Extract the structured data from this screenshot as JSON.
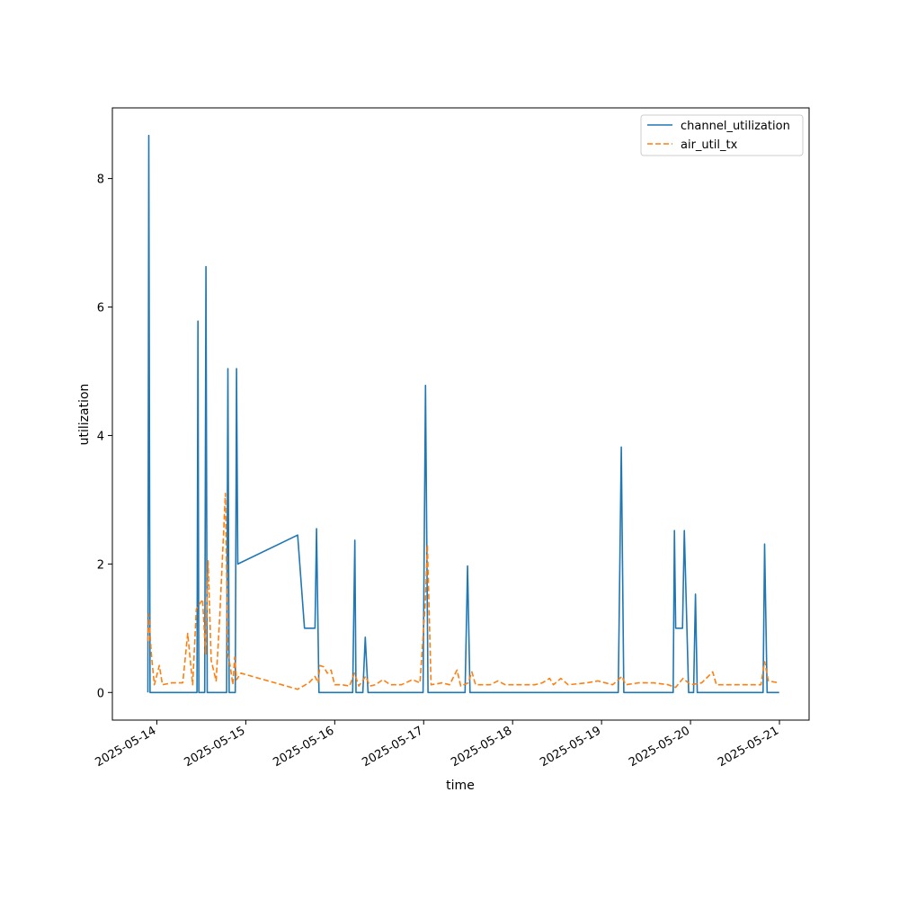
{
  "chart_data": {
    "type": "line",
    "xlabel": "time",
    "ylabel": "utilization",
    "xlim": [
      "2025-05-13 12:00",
      "2025-05-21 08:00"
    ],
    "ylim": [
      -0.43,
      9.1
    ],
    "x_ticks": [
      "2025-05-14",
      "2025-05-15",
      "2025-05-16",
      "2025-05-17",
      "2025-05-18",
      "2025-05-19",
      "2025-05-20",
      "2025-05-21"
    ],
    "y_ticks": [
      "0",
      "2",
      "4",
      "6",
      "8"
    ],
    "legend_position": "top-right",
    "grid": false,
    "series": [
      {
        "name": "channel_utilization",
        "color": "#1f77b4",
        "style": "solid",
        "points": [
          [
            "2025-05-13 21:35",
            0
          ],
          [
            "2025-05-13 21:50",
            8.67
          ],
          [
            "2025-05-13 22:10",
            0
          ],
          [
            "2025-05-14 10:50",
            0
          ],
          [
            "2025-05-14 11:05",
            5.78
          ],
          [
            "2025-05-14 11:20",
            0
          ],
          [
            "2025-05-14 12:55",
            0
          ],
          [
            "2025-05-14 13:15",
            6.63
          ],
          [
            "2025-05-14 13:35",
            0
          ],
          [
            "2025-05-14 18:50",
            0
          ],
          [
            "2025-05-14 19:10",
            5.04
          ],
          [
            "2025-05-14 19:30",
            0
          ],
          [
            "2025-05-14 21:10",
            0
          ],
          [
            "2025-05-14 21:30",
            5.04
          ],
          [
            "2025-05-14 21:50",
            2.0
          ],
          [
            "2025-05-15 14:00",
            2.45
          ],
          [
            "2025-05-15 15:50",
            1.0
          ],
          [
            "2025-05-15 18:40",
            1.0
          ],
          [
            "2025-05-15 19:05",
            2.55
          ],
          [
            "2025-05-15 19:45",
            0
          ],
          [
            "2025-05-16 04:50",
            0
          ],
          [
            "2025-05-16 05:25",
            2.37
          ],
          [
            "2025-05-16 05:45",
            0
          ],
          [
            "2025-05-16 07:35",
            0
          ],
          [
            "2025-05-16 08:15",
            0.86
          ],
          [
            "2025-05-16 09:00",
            0
          ],
          [
            "2025-05-16 23:50",
            0
          ],
          [
            "2025-05-17 00:30",
            4.78
          ],
          [
            "2025-05-17 01:10",
            0
          ],
          [
            "2025-05-17 11:10",
            0
          ],
          [
            "2025-05-17 11:50",
            1.97
          ],
          [
            "2025-05-17 12:30",
            0
          ],
          [
            "2025-05-19 04:30",
            0
          ],
          [
            "2025-05-19 05:20",
            3.82
          ],
          [
            "2025-05-19 06:00",
            0
          ],
          [
            "2025-05-19 19:20",
            0
          ],
          [
            "2025-05-19 19:40",
            2.52
          ],
          [
            "2025-05-19 20:00",
            1.0
          ],
          [
            "2025-05-19 21:50",
            1.0
          ],
          [
            "2025-05-19 22:20",
            2.52
          ],
          [
            "2025-05-19 23:30",
            0
          ],
          [
            "2025-05-20 00:50",
            0
          ],
          [
            "2025-05-20 01:20",
            1.53
          ],
          [
            "2025-05-20 01:50",
            0
          ],
          [
            "2025-05-20 19:35",
            0
          ],
          [
            "2025-05-20 20:00",
            2.31
          ],
          [
            "2025-05-20 20:40",
            0
          ],
          [
            "2025-05-20 23:55",
            0
          ]
        ]
      },
      {
        "name": "air_util_tx",
        "color": "#ff7f0e",
        "style": "dashed",
        "points": [
          [
            "2025-05-13 21:35",
            0.8
          ],
          [
            "2025-05-13 21:50",
            1.22
          ],
          [
            "2025-05-13 22:30",
            0.6
          ],
          [
            "2025-05-13 23:20",
            0.12
          ],
          [
            "2025-05-14 00:40",
            0.42
          ],
          [
            "2025-05-14 01:30",
            0.12
          ],
          [
            "2025-05-14 04:00",
            0.15
          ],
          [
            "2025-05-14 07:00",
            0.15
          ],
          [
            "2025-05-14 08:20",
            0.92
          ],
          [
            "2025-05-14 09:40",
            0.12
          ],
          [
            "2025-05-14 10:40",
            1.3
          ],
          [
            "2025-05-14 12:20",
            1.45
          ],
          [
            "2025-05-14 13:10",
            0.6
          ],
          [
            "2025-05-14 13:50",
            2.05
          ],
          [
            "2025-05-14 14:40",
            0.5
          ],
          [
            "2025-05-14 16:00",
            0.18
          ],
          [
            "2025-05-14 17:00",
            1.2
          ],
          [
            "2025-05-14 18:30",
            3.1
          ],
          [
            "2025-05-14 19:10",
            0.6
          ],
          [
            "2025-05-14 19:50",
            0.4
          ],
          [
            "2025-05-14 20:30",
            0.12
          ],
          [
            "2025-05-14 21:00",
            0.55
          ],
          [
            "2025-05-14 21:30",
            0.2
          ],
          [
            "2025-05-14 22:40",
            0.3
          ],
          [
            "2025-05-15 14:00",
            0.05
          ],
          [
            "2025-05-15 17:00",
            0.15
          ],
          [
            "2025-05-15 18:40",
            0.25
          ],
          [
            "2025-05-15 19:30",
            0.15
          ],
          [
            "2025-05-15 20:00",
            0.42
          ],
          [
            "2025-05-15 21:00",
            0.4
          ],
          [
            "2025-05-15 22:00",
            0.3
          ],
          [
            "2025-05-15 23:00",
            0.35
          ],
          [
            "2025-05-16 00:00",
            0.12
          ],
          [
            "2025-05-16 02:00",
            0.12
          ],
          [
            "2025-05-16 04:00",
            0.1
          ],
          [
            "2025-05-16 05:20",
            0.3
          ],
          [
            "2025-05-16 06:30",
            0.1
          ],
          [
            "2025-05-16 08:20",
            0.25
          ],
          [
            "2025-05-16 09:30",
            0.1
          ],
          [
            "2025-05-16 11:00",
            0.12
          ],
          [
            "2025-05-16 13:00",
            0.2
          ],
          [
            "2025-05-16 15:00",
            0.12
          ],
          [
            "2025-05-16 18:00",
            0.12
          ],
          [
            "2025-05-16 21:00",
            0.2
          ],
          [
            "2025-05-16 23:00",
            0.15
          ],
          [
            "2025-05-17 00:30",
            1.45
          ],
          [
            "2025-05-17 01:00",
            2.3
          ],
          [
            "2025-05-17 02:00",
            0.12
          ],
          [
            "2025-05-17 05:00",
            0.15
          ],
          [
            "2025-05-17 07:00",
            0.12
          ],
          [
            "2025-05-17 09:00",
            0.35
          ],
          [
            "2025-05-17 10:00",
            0.1
          ],
          [
            "2025-05-17 12:00",
            0.15
          ],
          [
            "2025-05-17 13:00",
            0.32
          ],
          [
            "2025-05-17 14:00",
            0.12
          ],
          [
            "2025-05-17 18:00",
            0.12
          ],
          [
            "2025-05-17 20:00",
            0.18
          ],
          [
            "2025-05-17 22:00",
            0.12
          ],
          [
            "2025-05-18 06:00",
            0.12
          ],
          [
            "2025-05-18 08:00",
            0.15
          ],
          [
            "2025-05-18 10:00",
            0.22
          ],
          [
            "2025-05-18 11:00",
            0.12
          ],
          [
            "2025-05-18 13:00",
            0.22
          ],
          [
            "2025-05-18 15:00",
            0.12
          ],
          [
            "2025-05-18 20:00",
            0.15
          ],
          [
            "2025-05-18 23:00",
            0.18
          ],
          [
            "2025-05-19 03:00",
            0.12
          ],
          [
            "2025-05-19 05:30",
            0.25
          ],
          [
            "2025-05-19 06:30",
            0.12
          ],
          [
            "2025-05-19 10:00",
            0.15
          ],
          [
            "2025-05-19 14:00",
            0.15
          ],
          [
            "2025-05-19 18:00",
            0.12
          ],
          [
            "2025-05-19 20:00",
            0.08
          ],
          [
            "2025-05-19 22:00",
            0.22
          ],
          [
            "2025-05-20 00:00",
            0.12
          ],
          [
            "2025-05-20 03:00",
            0.15
          ],
          [
            "2025-05-20 06:00",
            0.32
          ],
          [
            "2025-05-20 07:00",
            0.12
          ],
          [
            "2025-05-20 12:00",
            0.12
          ],
          [
            "2025-05-20 16:00",
            0.12
          ],
          [
            "2025-05-20 19:00",
            0.12
          ],
          [
            "2025-05-20 20:00",
            0.48
          ],
          [
            "2025-05-20 21:00",
            0.18
          ],
          [
            "2025-05-20 23:55",
            0.15
          ]
        ]
      }
    ]
  }
}
